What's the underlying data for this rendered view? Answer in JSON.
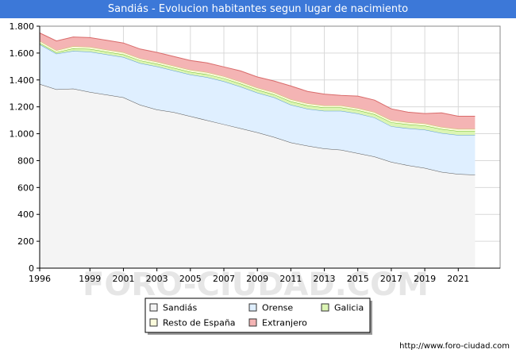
{
  "title": "Sandiás - Evolucion habitantes segun lugar de nacimiento",
  "source": "http://www.foro-ciudad.com",
  "watermark": "FORO-CIUDAD.COM",
  "chart_data": {
    "type": "area",
    "stacked": true,
    "title": "Sandiás - Evolucion habitantes segun lugar de nacimiento",
    "xlabel": "",
    "ylabel": "",
    "x": [
      1996,
      1997,
      1998,
      1999,
      2000,
      2001,
      2002,
      2003,
      2004,
      2005,
      2006,
      2007,
      2008,
      2009,
      2010,
      2011,
      2012,
      2013,
      2014,
      2015,
      2016,
      2017,
      2018,
      2019,
      2020,
      2021,
      2022
    ],
    "xticks": [
      1996,
      1999,
      2001,
      2003,
      2005,
      2007,
      2009,
      2011,
      2013,
      2015,
      2017,
      2019,
      2021
    ],
    "xticklabels": [
      "1996",
      "1999",
      "2001",
      "2003",
      "2005",
      "2007",
      "2009",
      "2011",
      "2013",
      "2015",
      "2017",
      "2019",
      "2021"
    ],
    "xlim": [
      1996,
      2023.5
    ],
    "ylim": [
      0,
      1800
    ],
    "yticks": [
      0,
      200,
      400,
      600,
      800,
      1000,
      1200,
      1400,
      1600,
      1800
    ],
    "yticklabels": [
      "0",
      "200",
      "400",
      "600",
      "800",
      "1.000",
      "1.200",
      "1.400",
      "1.600",
      "1.800"
    ],
    "grid": true,
    "legend_position": "bottom",
    "series": [
      {
        "name": "Sandiás",
        "color": "#f4f4f4",
        "edge": "#555555",
        "values": [
          1370,
          1330,
          1335,
          1310,
          1290,
          1270,
          1215,
          1180,
          1160,
          1130,
          1100,
          1070,
          1040,
          1010,
          975,
          935,
          910,
          890,
          880,
          855,
          830,
          790,
          765,
          745,
          715,
          700,
          695
        ]
      },
      {
        "name": "Orense",
        "color": "#dfefff",
        "edge": "#5a9bd5",
        "values": [
          295,
          265,
          280,
          300,
          300,
          300,
          310,
          320,
          310,
          310,
          320,
          320,
          310,
          295,
          295,
          280,
          275,
          280,
          290,
          295,
          290,
          265,
          275,
          285,
          290,
          290,
          295
        ]
      },
      {
        "name": "Galicia",
        "color": "#dcf5b4",
        "edge": "#6cbf2a",
        "values": [
          10,
          10,
          20,
          20,
          20,
          20,
          20,
          20,
          20,
          20,
          22,
          22,
          22,
          22,
          22,
          25,
          25,
          25,
          25,
          25,
          25,
          30,
          30,
          30,
          30,
          30,
          30
        ]
      },
      {
        "name": "Resto de España",
        "color": "#fbfbdc",
        "edge": "#c9c96a",
        "values": [
          15,
          15,
          15,
          15,
          15,
          15,
          15,
          15,
          15,
          15,
          15,
          15,
          15,
          15,
          15,
          15,
          15,
          15,
          15,
          15,
          15,
          15,
          15,
          15,
          15,
          15,
          15
        ]
      },
      {
        "name": "Extranjero",
        "color": "#f4b4b4",
        "edge": "#d96b6b",
        "values": [
          60,
          70,
          70,
          70,
          70,
          70,
          70,
          70,
          70,
          70,
          70,
          70,
          80,
          80,
          85,
          100,
          90,
          85,
          75,
          90,
          90,
          85,
          75,
          75,
          105,
          95,
          95
        ]
      }
    ]
  }
}
